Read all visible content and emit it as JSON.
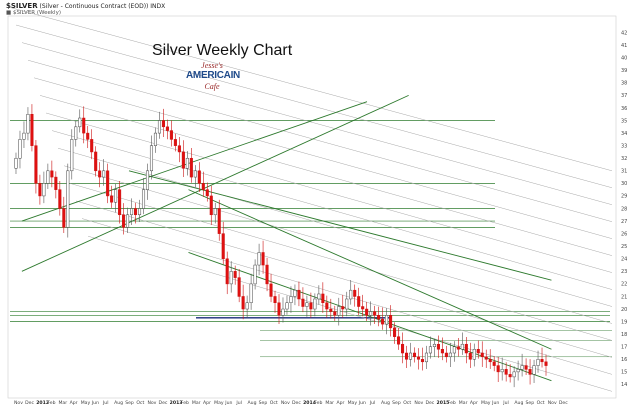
{
  "header": {
    "symbol": "$SILVER",
    "description": "(Silver - Continuous Contract (EOD)) INDX",
    "legend": "■ $SILVER (Weekly)"
  },
  "logo": {
    "line1": "Jesse's",
    "line2": "AMERICAIN",
    "line3": "Cafe"
  },
  "chart_data": {
    "type": "candlestick",
    "title": "Silver Weekly Chart",
    "timeframe": "Weekly",
    "ylim": [
      13,
      43
    ],
    "y_ticks": [
      14,
      15,
      16,
      17,
      18,
      19,
      20,
      21,
      22,
      23,
      24,
      25,
      26,
      27,
      28,
      29,
      30,
      31,
      32,
      33,
      34,
      35,
      36,
      37,
      38,
      39,
      40,
      41,
      42
    ],
    "x_ticks": [
      "Nov",
      "Dec",
      "2012",
      "Feb",
      "Mar",
      "Apr",
      "May",
      "Jun",
      "Jul",
      "Aug",
      "Sep",
      "Oct",
      "Nov",
      "Dec",
      "2013",
      "Feb",
      "Mar",
      "Apr",
      "May",
      "Jun",
      "Jul",
      "Aug",
      "Sep",
      "Oct",
      "Nov",
      "Dec",
      "2014",
      "Feb",
      "Mar",
      "Apr",
      "May",
      "Jun",
      "Jul",
      "Aug",
      "Sep",
      "Oct",
      "Nov",
      "Dec",
      "2015",
      "Feb",
      "Mar",
      "Apr",
      "May",
      "Jun",
      "Jul",
      "Aug",
      "Sep",
      "Oct",
      "Nov",
      "Dec"
    ],
    "year_ticks": [
      "2012",
      "2013",
      "2014",
      "2015"
    ],
    "close_path": [
      32,
      33.5,
      34,
      35.5,
      33,
      30,
      29,
      30,
      31,
      30.5,
      29.5,
      28,
      26.5,
      31,
      33.5,
      34.5,
      35.2,
      34,
      33.5,
      32.5,
      31,
      30.5,
      31,
      29,
      28.5,
      29.5,
      27.5,
      26.5,
      27.5,
      28,
      27.5,
      28,
      29.5,
      31,
      33,
      34,
      35,
      34.5,
      34.2,
      33.5,
      33,
      32.5,
      31.2,
      32,
      30.5,
      31,
      30,
      29.5,
      29,
      27.5,
      28,
      26,
      24,
      22,
      23,
      22.5,
      21,
      20,
      20.5,
      22,
      23.5,
      24.5,
      23.5,
      22,
      21,
      20.5,
      19.5,
      20,
      20.5,
      21,
      21.5,
      20.8,
      20.2,
      20.5,
      20,
      20.8,
      21.2,
      20.5,
      20,
      19.8,
      19.5,
      20.2,
      20,
      20.8,
      21.5,
      21,
      20.2,
      20,
      19.5,
      19.8,
      19.5,
      19.2,
      18.8,
      19.5,
      18.5,
      17.8,
      17.2,
      16.5,
      16,
      16.5,
      16.2,
      16,
      15.8,
      16.5,
      17,
      17.2,
      16.8,
      16.5,
      16.2,
      16.5,
      17,
      16.8,
      17.2,
      16.5,
      16,
      16.8,
      16.5,
      16.2,
      16,
      15.8,
      15.5,
      15,
      15.2,
      14.8,
      14.6,
      15,
      15.2,
      15.5,
      15.2,
      14.8,
      15.5,
      16,
      15.8,
      15.5
    ],
    "horizontal_support": [
      35,
      30,
      28,
      27,
      26.5,
      19.8,
      19.5,
      19
    ],
    "support_highlight": 19.3,
    "horizontal_levels_right": [
      18.3,
      17.5,
      16.2
    ],
    "trendlines": {
      "up_channel": [
        [
          0.02,
          23,
          0.67,
          37
        ],
        [
          0.02,
          27,
          0.6,
          36.5
        ]
      ],
      "down_channel": [
        [
          0.3,
          29.5,
          0.91,
          16.8
        ],
        [
          0.3,
          24.5,
          0.91,
          14.3
        ],
        [
          0.2,
          31,
          0.91,
          22.3
        ]
      ],
      "fan": 14
    },
    "grid": false,
    "legend": "none"
  }
}
